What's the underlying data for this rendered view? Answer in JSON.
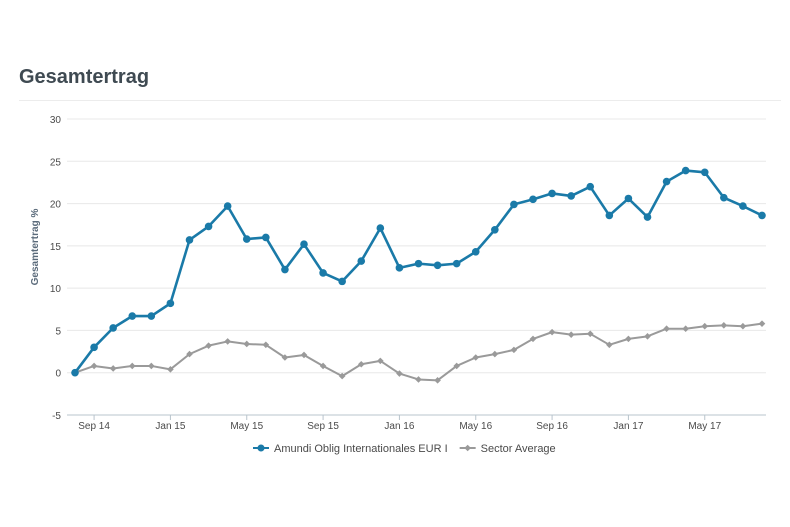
{
  "title": "Gesamtertrag",
  "chart_data": {
    "type": "line",
    "ylabel": "Gesamtertrag %",
    "xlabel": "",
    "ylim": [
      -5,
      30
    ],
    "yticks": [
      "30",
      "25",
      "20",
      "15",
      "10",
      "5",
      "0",
      "-5"
    ],
    "xtick_labels": [
      "Sep 14",
      "Jan 15",
      "May 15",
      "Sep 15",
      "Jan 16",
      "May 16",
      "Sep 16",
      "Jan 17",
      "May 17"
    ],
    "grid": "horizontal",
    "legend": "bottom",
    "series": [
      {
        "name": "Amundi Oblig Internationales EUR I",
        "color": "#1a7aa8",
        "marker": "circle",
        "values": [
          0,
          3,
          5.3,
          6.7,
          6.7,
          8.2,
          15.7,
          17.3,
          19.7,
          15.8,
          16,
          12.2,
          15.2,
          11.8,
          10.8,
          13.2,
          17.1,
          12.4,
          12.9,
          12.7,
          12.9,
          14.3,
          16.9,
          19.9,
          20.5,
          21.2,
          20.9,
          22,
          18.6,
          20.6,
          18.4,
          22.6,
          23.9,
          23.7,
          20.7,
          19.7,
          18.6
        ]
      },
      {
        "name": "Sector Average",
        "color": "#9a9a9a",
        "marker": "diamond",
        "values": [
          0,
          0.8,
          0.5,
          0.8,
          0.8,
          0.4,
          2.2,
          3.2,
          3.7,
          3.4,
          3.3,
          1.8,
          2.1,
          0.8,
          -0.4,
          1,
          1.4,
          -0.1,
          -0.8,
          -0.9,
          0.8,
          1.8,
          2.2,
          2.7,
          4,
          4.8,
          4.5,
          4.6,
          3.3,
          4,
          4.3,
          5.2,
          5.2,
          5.5,
          5.6,
          5.5,
          5.8
        ]
      }
    ]
  }
}
